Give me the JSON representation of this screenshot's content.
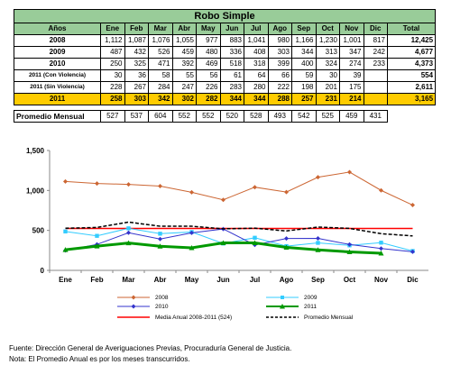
{
  "table": {
    "title": "Robo Simple",
    "columns": [
      "Años",
      "Ene",
      "Feb",
      "Mar",
      "Abr",
      "May",
      "Jun",
      "Jul",
      "Ago",
      "Sep",
      "Oct",
      "Nov",
      "Dic",
      "Total"
    ],
    "rows": [
      {
        "label": "2008",
        "cells": [
          "1,112",
          "1,087",
          "1,076",
          "1,055",
          "977",
          "883",
          "1,041",
          "980",
          "1,166",
          "1,230",
          "1,001",
          "817",
          "12,425"
        ]
      },
      {
        "label": "2009",
        "cells": [
          "487",
          "432",
          "526",
          "459",
          "480",
          "336",
          "408",
          "303",
          "344",
          "313",
          "347",
          "242",
          "4,677"
        ]
      },
      {
        "label": "2010",
        "cells": [
          "250",
          "325",
          "471",
          "392",
          "469",
          "518",
          "318",
          "399",
          "400",
          "324",
          "274",
          "233",
          "4,373"
        ]
      },
      {
        "label": "2011 (Con Violencia)",
        "cells": [
          "30",
          "36",
          "58",
          "55",
          "56",
          "61",
          "64",
          "66",
          "59",
          "30",
          "39",
          "",
          "554"
        ]
      },
      {
        "label": "2011 (Sin Violencia)",
        "cells": [
          "228",
          "267",
          "284",
          "247",
          "226",
          "283",
          "280",
          "222",
          "198",
          "201",
          "175",
          "",
          "2,611"
        ]
      },
      {
        "label": "2011",
        "cells": [
          "258",
          "303",
          "342",
          "302",
          "282",
          "344",
          "344",
          "288",
          "257",
          "231",
          "214",
          "",
          "3,165"
        ]
      }
    ],
    "average_label": "Promedio Mensual",
    "average_cells": [
      "527",
      "537",
      "604",
      "552",
      "552",
      "520",
      "528",
      "493",
      "542",
      "525",
      "459",
      "431"
    ]
  },
  "chart_data": {
    "type": "line",
    "categories": [
      "Ene",
      "Feb",
      "Mar",
      "Abr",
      "May",
      "Jun",
      "Jul",
      "Ago",
      "Sep",
      "Oct",
      "Nov",
      "Dic"
    ],
    "ylim": [
      0,
      1500
    ],
    "yticks": [
      0,
      500,
      1000,
      1500
    ],
    "ytick_labels": [
      "0",
      "500",
      "1,000",
      "1,500"
    ],
    "grid": false,
    "legend_position": "bottom",
    "series": [
      {
        "name": "2008",
        "color": "#cc6633",
        "marker": "diamond",
        "dash": "solid",
        "width": 1,
        "values": [
          1112,
          1087,
          1076,
          1055,
          977,
          883,
          1041,
          980,
          1166,
          1230,
          1001,
          817
        ]
      },
      {
        "name": "2009",
        "color": "#33ccff",
        "marker": "square",
        "dash": "solid",
        "width": 1,
        "values": [
          487,
          432,
          526,
          459,
          480,
          336,
          408,
          303,
          344,
          313,
          347,
          242
        ]
      },
      {
        "name": "2010",
        "color": "#3333cc",
        "marker": "diamond",
        "dash": "solid",
        "width": 1,
        "values": [
          250,
          325,
          471,
          392,
          469,
          518,
          318,
          399,
          400,
          324,
          274,
          233
        ]
      },
      {
        "name": "2011",
        "color": "#009900",
        "marker": "triangle",
        "dash": "solid",
        "width": 3,
        "values": [
          258,
          303,
          342,
          302,
          282,
          344,
          344,
          288,
          257,
          231,
          214,
          null
        ]
      },
      {
        "name": "Media Anual 2008-2011 (524)",
        "color": "#ff0000",
        "marker": "none",
        "dash": "solid",
        "width": 1.5,
        "values": [
          524,
          524,
          524,
          524,
          524,
          524,
          524,
          524,
          524,
          524,
          524,
          524
        ]
      },
      {
        "name": "Promedio Mensual",
        "color": "#000000",
        "marker": "none",
        "dash": "dashed",
        "width": 1.5,
        "values": [
          527,
          537,
          604,
          552,
          552,
          520,
          528,
          493,
          542,
          525,
          459,
          431
        ]
      }
    ]
  },
  "notes": {
    "source": "Fuente: Dirección General de Averiguaciones Previas, Procuraduría General de Justicia.",
    "note": "Nota:  El Promedio Anual es por los meses transcurridos."
  }
}
